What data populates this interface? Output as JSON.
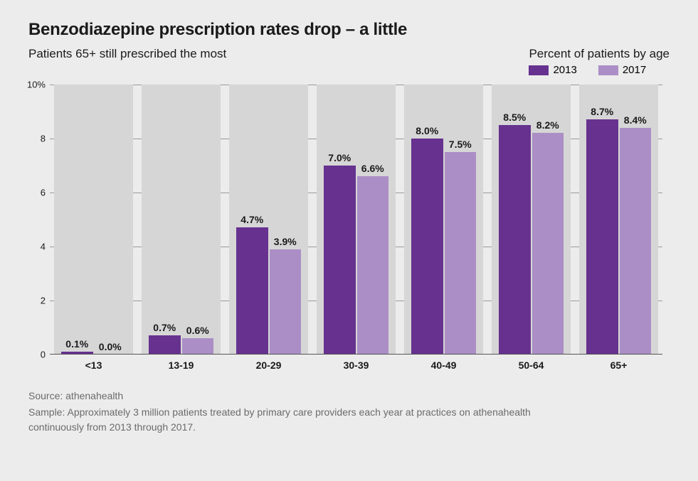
{
  "chart": {
    "type": "bar",
    "title": "Benzodiazepine prescription rates drop – a little",
    "subtitle": "Patients 65+ still prescribed the most",
    "legend": {
      "title": "Percent of patients by age",
      "series": [
        {
          "name": "2013",
          "color": "#66318f"
        },
        {
          "name": "2017",
          "color": "#ab8ec6"
        }
      ]
    },
    "y_axis": {
      "min": 0,
      "max": 10,
      "ticks": [
        0,
        2,
        4,
        6,
        8,
        10
      ],
      "tick_labels": [
        "0",
        "2",
        "4",
        "6",
        "8",
        "10%"
      ],
      "grid_color": "#9a9a9a",
      "tick_fontsize": 13
    },
    "categories": [
      "<13",
      "13-19",
      "20-29",
      "30-39",
      "40-49",
      "50-64",
      "65+"
    ],
    "series_data": {
      "2013": [
        0.1,
        0.7,
        4.7,
        7.0,
        8.0,
        8.5,
        8.7
      ],
      "2017": [
        0.0,
        0.6,
        3.9,
        6.6,
        7.5,
        8.2,
        8.4
      ]
    },
    "value_labels": {
      "2013": [
        "0.1%",
        "0.7%",
        "4.7%",
        "7.0%",
        "8.0%",
        "8.5%",
        "8.7%"
      ],
      "2017": [
        "0.0%",
        "0.6%",
        "3.9%",
        "6.6%",
        "7.5%",
        "8.2%",
        "8.4%"
      ]
    },
    "colors": {
      "background": "#ececec",
      "group_bg": "#d6d6d6",
      "series_2013": "#66318f",
      "series_2017": "#ab8ec6",
      "text": "#1a1a1a",
      "footer_text": "#6b6b6b",
      "baseline": "#555555"
    },
    "typography": {
      "title_fontsize": 24,
      "title_weight": 700,
      "subtitle_fontsize": 17,
      "label_fontsize": 14,
      "label_weight": 700
    },
    "footer": {
      "source": "Source: athenahealth",
      "sample": "Sample: Approximately 3 million patients treated by primary care providers each year at practices on athenahealth continuously from 2013 through 2017."
    }
  }
}
